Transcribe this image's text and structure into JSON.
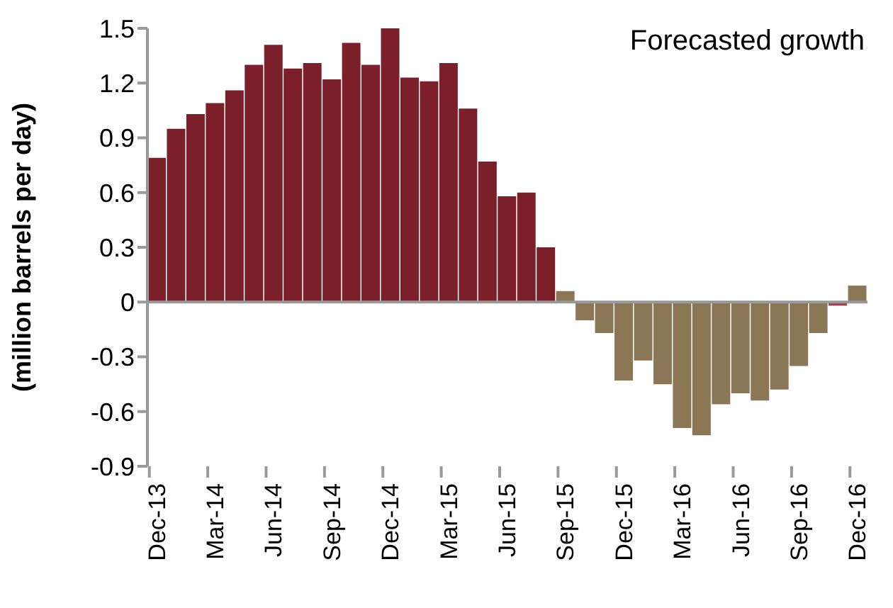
{
  "chart_data": {
    "type": "bar",
    "title": "Forecasted growth",
    "ylabel": "(million barrels per day)",
    "categories": [
      "Dec-13",
      null,
      null,
      "Mar-14",
      null,
      null,
      "Jun-14",
      null,
      null,
      "Sep-14",
      null,
      null,
      "Dec-14",
      null,
      null,
      "Mar-15",
      null,
      null,
      "Jun-15",
      null,
      null,
      "Sep-15",
      null,
      null,
      "Dec-15",
      null,
      null,
      "Mar-16",
      null,
      null,
      "Jun-16",
      null,
      null,
      "Sep-16",
      null,
      null,
      "Dec-16"
    ],
    "values": [
      0.79,
      0.95,
      1.03,
      1.09,
      1.16,
      1.3,
      1.41,
      1.28,
      1.31,
      1.22,
      1.42,
      1.3,
      1.5,
      1.23,
      1.21,
      1.31,
      1.06,
      0.77,
      0.58,
      0.6,
      0.3,
      0.06,
      -0.1,
      -0.17,
      -0.43,
      -0.32,
      -0.45,
      -0.69,
      -0.73,
      -0.56,
      -0.5,
      -0.54,
      -0.48,
      -0.35,
      -0.17,
      -0.02,
      0.09
    ],
    "colors": [
      "#7b1f2a",
      "#7b1f2a",
      "#7b1f2a",
      "#7b1f2a",
      "#7b1f2a",
      "#7b1f2a",
      "#7b1f2a",
      "#7b1f2a",
      "#7b1f2a",
      "#7b1f2a",
      "#7b1f2a",
      "#7b1f2a",
      "#7b1f2a",
      "#7b1f2a",
      "#7b1f2a",
      "#7b1f2a",
      "#7b1f2a",
      "#7b1f2a",
      "#7b1f2a",
      "#7b1f2a",
      "#7b1f2a",
      "#8b7655",
      "#8b7655",
      "#8b7655",
      "#8b7655",
      "#8b7655",
      "#8b7655",
      "#8b7655",
      "#8b7655",
      "#8b7655",
      "#8b7655",
      "#8b7655",
      "#8b7655",
      "#8b7655",
      "#8b7655",
      "#a0404f",
      "#8b7655"
    ],
    "ylim": [
      -0.9,
      1.5
    ],
    "yticks": [
      -0.9,
      -0.6,
      -0.3,
      0,
      0.3,
      0.6,
      0.9,
      1.2,
      1.5
    ]
  }
}
